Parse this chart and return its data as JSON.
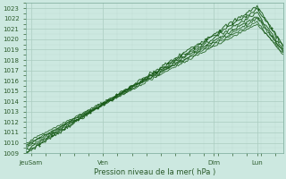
{
  "title": "",
  "ylabel": "Pression niveau de la mer( hPa )",
  "ylim": [
    1009,
    1023.5
  ],
  "yticks": [
    1009,
    1010,
    1011,
    1012,
    1013,
    1014,
    1015,
    1016,
    1017,
    1018,
    1019,
    1020,
    1021,
    1022,
    1023
  ],
  "xtick_labels": [
    "JeuSam",
    "Ven",
    "Dim",
    "Lun"
  ],
  "xtick_positions": [
    0.02,
    0.3,
    0.73,
    0.9
  ],
  "xlim": [
    0.0,
    1.0
  ],
  "bg_color": "#cce8e0",
  "grid_color_major": "#aaccbf",
  "grid_color_minor": "#bedad3",
  "line_color": "#1a5c1a",
  "tick_label_color": "#2a5a2a",
  "tick_fontsize": 5.0,
  "xlabel_fontsize": 6.0
}
